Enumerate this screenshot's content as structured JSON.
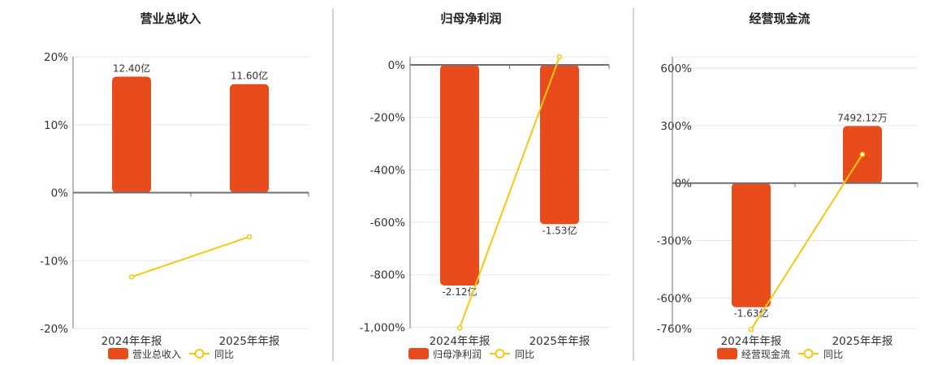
{
  "colors": {
    "bar": "#E84C1C",
    "line": "#F2C811",
    "axis": "#6E7079",
    "grid": "#E0E6F1",
    "divider": "#AAAAAA"
  },
  "chart_data": [
    {
      "type": "bar+line",
      "title": "营业总收入",
      "categories": [
        "2024年年报",
        "2025年年报"
      ],
      "bar_series": {
        "name": "营业总收入",
        "values": [
          12.4,
          11.6
        ],
        "unit": "亿",
        "labels": [
          "12.40亿",
          "11.60亿"
        ]
      },
      "line_series": {
        "name": "同比",
        "values": [
          -12.4,
          -6.5
        ],
        "unit": "%"
      },
      "yticks": [
        "20%",
        "10%",
        "0%",
        "-10%",
        "-20%"
      ],
      "ytick_values": [
        20,
        10,
        0,
        -10,
        -20
      ],
      "ylim": [
        -20,
        20
      ],
      "grid": true,
      "legend": "bottom"
    },
    {
      "type": "bar+line",
      "title": "归母净利润",
      "categories": [
        "2024年年报",
        "2025年年报"
      ],
      "bar_series": {
        "name": "归母净利润",
        "values": [
          -2.12,
          -1.53
        ],
        "unit": "亿",
        "labels": [
          "-2.12亿",
          "-1.53亿"
        ]
      },
      "line_series": {
        "name": "同比",
        "values": [
          -1003,
          31
        ],
        "unit": "%"
      },
      "yticks": [
        "0%",
        "-200%",
        "-400%",
        "-600%",
        "-800%",
        "-1,000%"
      ],
      "ytick_values": [
        0,
        -200,
        -400,
        -600,
        -800,
        -1000
      ],
      "ylim": [
        -1005,
        31
      ],
      "grid": true,
      "legend": "bottom"
    },
    {
      "type": "bar+line",
      "title": "经营现金流",
      "categories": [
        "2024年年报",
        "2025年年报"
      ],
      "bar_series": {
        "name": "经营现金流",
        "values": [
          -1.63,
          0.749212
        ],
        "unit": "亿",
        "labels": [
          "-1.63亿",
          "7492.12万"
        ]
      },
      "line_series": {
        "name": "同比",
        "values": [
          -765,
          150
        ],
        "unit": "%"
      },
      "yticks": [
        "600%",
        "300%",
        "0%",
        "-300%",
        "-600%",
        "-760%"
      ],
      "ytick_values": [
        600,
        300,
        0,
        -300,
        -600,
        -760
      ],
      "ylim": [
        -760,
        660
      ],
      "grid": true,
      "legend": "bottom"
    }
  ]
}
